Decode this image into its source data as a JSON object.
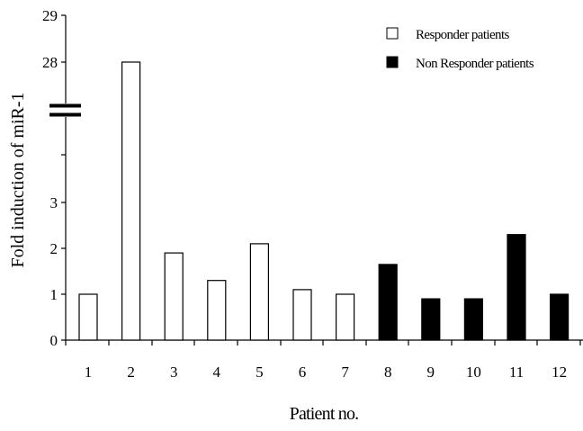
{
  "chart_data": {
    "type": "bar",
    "title": "",
    "xlabel": "Patient no.",
    "ylabel": "Fold induction of miR-1",
    "categories": [
      "1",
      "2",
      "3",
      "4",
      "5",
      "6",
      "7",
      "8",
      "9",
      "10",
      "11",
      "12"
    ],
    "values": [
      1,
      28,
      1.9,
      1.3,
      2.1,
      1.1,
      1.0,
      1.65,
      0.9,
      0.9,
      2.3,
      1.0
    ],
    "groups": [
      "Responder patients",
      "Responder patients",
      "Responder patients",
      "Responder patients",
      "Responder patients",
      "Responder patients",
      "Responder patients",
      "Non Responder patients",
      "Non Responder patients",
      "Non Responder patients",
      "Non Responder patients",
      "Non Responder patients"
    ],
    "yticks": [
      "0",
      "1",
      "2",
      "3",
      "28",
      "29"
    ],
    "y_axis_break": true,
    "ylim_lower": [
      0,
      3
    ],
    "ylim_upper": [
      28,
      29
    ],
    "legend": [
      {
        "label": "Responder patients",
        "fill": "#ffffff"
      },
      {
        "label": "Non Responder patients",
        "fill": "#000000"
      }
    ],
    "legend_position": "top-right",
    "grid": false,
    "colors": {
      "responder": "#ffffff",
      "non_responder": "#000000",
      "outline": "#000000"
    }
  }
}
